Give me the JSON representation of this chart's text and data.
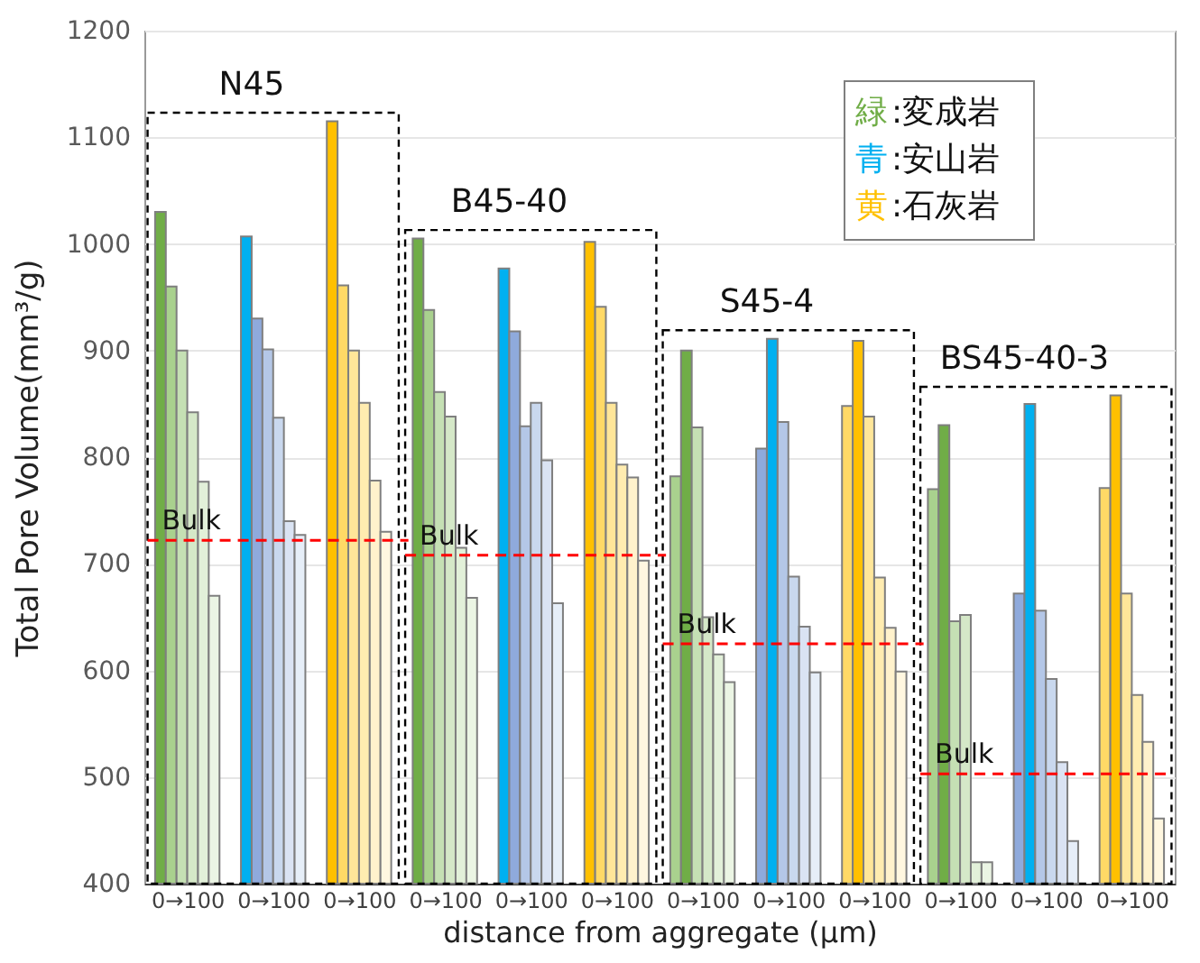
{
  "chart_data": {
    "type": "bar",
    "xlabel": "distance from aggregate (μm)",
    "ylabel": "Total Pore Volume(mm³/g)",
    "categories": [
      "0→100",
      "0→100",
      "0→100",
      "0→100",
      "0→100",
      "0→100",
      "0→100",
      "0→100",
      "0→100",
      "0→100",
      "0→100",
      "0→100"
    ],
    "series": [
      {
        "values": [
          1030,
          1007,
          1115,
          1005,
          977,
          1002,
          782,
          808,
          848,
          770,
          672,
          771
        ],
        "colors": [
          "#70ad47",
          "#00b0f0",
          "#ffc000",
          "#70ad47",
          "#00b0f0",
          "#ffc000",
          "#a9d18e",
          "#8faadc",
          "#ffd966",
          "#a9d18e",
          "#8faadc",
          "#ffd966"
        ]
      },
      {
        "values": [
          960,
          930,
          961,
          938,
          918,
          941,
          900,
          911,
          909,
          830,
          850,
          858
        ],
        "colors": [
          "#a9d18e",
          "#8faadc",
          "#ffd966",
          "#a9d18e",
          "#8faadc",
          "#ffd966",
          "#70ad47",
          "#00b0f0",
          "#ffc000",
          "#70ad47",
          "#00b0f0",
          "#ffc000"
        ]
      },
      {
        "values": [
          900,
          901,
          900,
          861,
          829,
          851,
          828,
          833,
          838,
          646,
          656,
          672
        ],
        "colors": [
          "#c5e0b4",
          "#b4c7e7",
          "#ffe699",
          "#c5e0b4",
          "#b4c7e7",
          "#ffe699",
          "#c5e0b4",
          "#b4c7e7",
          "#ffe699",
          "#c5e0b4",
          "#b4c7e7",
          "#ffe699"
        ]
      },
      {
        "values": [
          842,
          837,
          851,
          838,
          851,
          793,
          650,
          688,
          687,
          652,
          592,
          577
        ],
        "colors": [
          "#d5e8c8",
          "#c9d8ee",
          "#ffecb0",
          "#d5e8c8",
          "#c9d8ee",
          "#ffecb0",
          "#d5e8c8",
          "#c9d8ee",
          "#ffecb0",
          "#d5e8c8",
          "#c9d8ee",
          "#ffecb0"
        ]
      },
      {
        "values": [
          777,
          740,
          778,
          715,
          797,
          781,
          615,
          641,
          640,
          420,
          514,
          533
        ],
        "colors": [
          "#e2f0d9",
          "#dae3f3",
          "#fff2cc",
          "#e2f0d9",
          "#dae3f3",
          "#fff2cc",
          "#e2f0d9",
          "#dae3f3",
          "#fff2cc",
          "#e2f0d9",
          "#dae3f3",
          "#fff2cc"
        ]
      },
      {
        "values": [
          670,
          727,
          730,
          668,
          663,
          703,
          589,
          598,
          599,
          420,
          440,
          461
        ],
        "colors": [
          "#ebf5e4",
          "#e6eef8",
          "#fff7e0",
          "#ebf5e4",
          "#e6eef8",
          "#fff7e0",
          "#ebf5e4",
          "#e6eef8",
          "#fff7e0",
          "#ebf5e4",
          "#e6eef8",
          "#fff7e0"
        ]
      }
    ],
    "ylim": [
      400,
      1200
    ],
    "yticks": [
      400,
      500,
      600,
      700,
      800,
      900,
      1000,
      1100,
      1200
    ],
    "grid": "y",
    "ref_lines": [
      {
        "axis": "y",
        "value": 722,
        "label": "Bulk",
        "color": "#ff0000",
        "line_style": "dashed"
      },
      {
        "axis": "y",
        "value": 708,
        "label": "Bulk",
        "color": "#ff0000",
        "line_style": "dashed"
      },
      {
        "axis": "y",
        "value": 625,
        "label": "Bulk",
        "color": "#ff0000",
        "line_style": "dashed"
      },
      {
        "axis": "y",
        "value": 503,
        "label": "Bulk",
        "color": "#ff0000",
        "line_style": "dashed"
      }
    ],
    "annotations": [
      "N45",
      "B45-40",
      "S45-4",
      "BS45-40-3",
      "緑",
      ":変成岩",
      "青",
      ":安山岩",
      "黄",
      ":石灰岩"
    ]
  }
}
